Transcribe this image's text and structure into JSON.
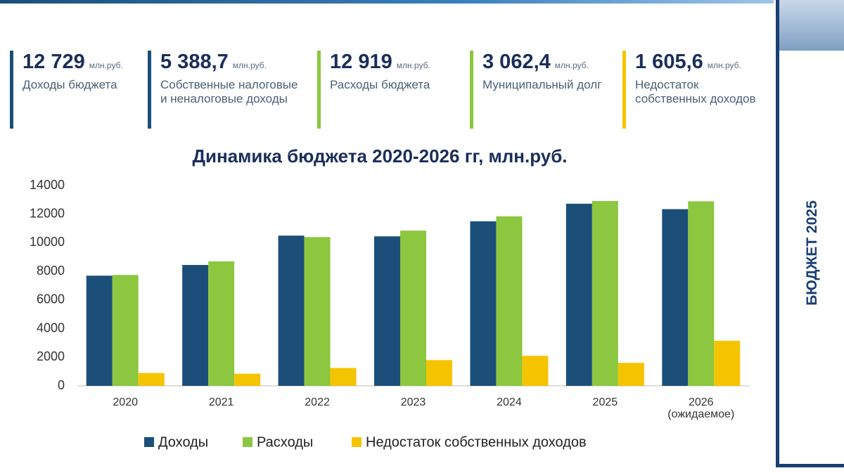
{
  "kpis": [
    {
      "value": "12 729",
      "unit": "млн.руб.",
      "label": "Доходы бюджета",
      "color": "#1b4f7a"
    },
    {
      "value": "5 388,7",
      "unit": "млн.руб.",
      "label": "Собственные налоговые\nи неналоговые доходы",
      "color": "#1b4f7a"
    },
    {
      "value": "12 919",
      "unit": "млн.руб.",
      "label": "Расходы бюджета",
      "color": "#8dc63f"
    },
    {
      "value": "3 062,4",
      "unit": "млн.руб.",
      "label": "Муниципальный долг",
      "color": "#8dc63f"
    },
    {
      "value": "1 605,6",
      "unit": "млн.руб.",
      "label": "Недостаток\nсобственных доходов",
      "color": "#f5c400"
    }
  ],
  "sidebar": {
    "title": "БЮДЖЕТ 2025"
  },
  "chart_data": {
    "type": "bar",
    "title": "Динамика бюджета 2020-2026 гг, млн.руб.",
    "categories": [
      "2020",
      "2021",
      "2022",
      "2023",
      "2024",
      "2025",
      "2026\n(ожидаемое)"
    ],
    "series": [
      {
        "name": "Доходы",
        "color": "#1b4f7a",
        "values": [
          7700,
          8450,
          10500,
          10450,
          11500,
          12729,
          12350
        ]
      },
      {
        "name": "Расходы",
        "color": "#8dc63f",
        "values": [
          7750,
          8700,
          10400,
          10850,
          11850,
          12919,
          12900
        ]
      },
      {
        "name": "Недостаток собственных доходов",
        "color": "#f5c400",
        "values": [
          900,
          850,
          1250,
          1800,
          2100,
          1605.6,
          3150
        ]
      }
    ],
    "ylim": [
      0,
      14000
    ],
    "yticks": [
      0,
      2000,
      4000,
      6000,
      8000,
      10000,
      12000,
      14000
    ],
    "grid": false,
    "legend": "bottom"
  }
}
